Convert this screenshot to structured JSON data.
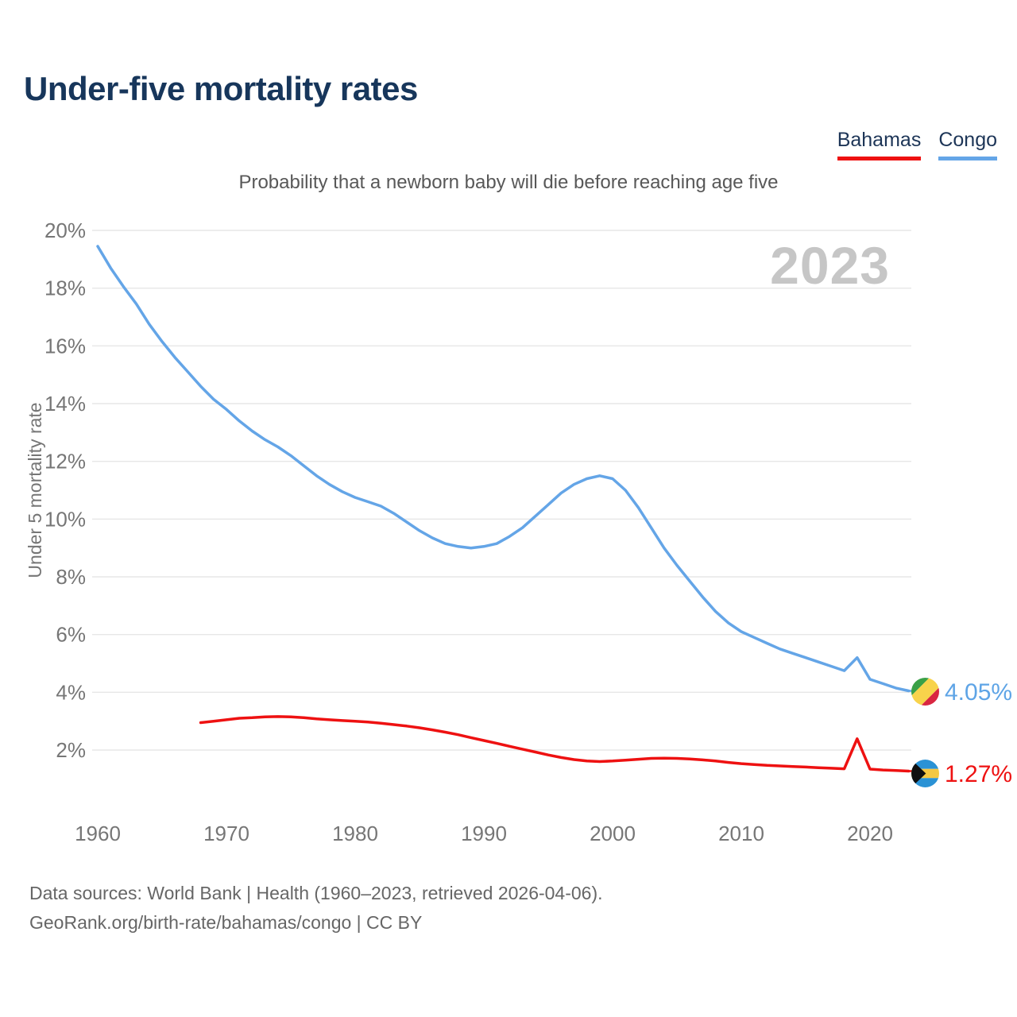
{
  "header": {
    "title": "Under-five mortality rates"
  },
  "legend": {
    "items": [
      {
        "label": "Bahamas",
        "color": "#ee1111"
      },
      {
        "label": "Congo",
        "color": "#64a5e7"
      }
    ]
  },
  "chart_data": {
    "type": "line",
    "title": "Probability that a newborn baby will die before reaching age five",
    "ylabel": "Under 5 mortality rate",
    "watermark": "2023",
    "grid": "horizontal",
    "legend_position": "top-right",
    "xlim": [
      1958,
      2026
    ],
    "ylim": [
      0.8,
      20.6
    ],
    "x_ticks": [
      {
        "value": 1960,
        "label": "1960"
      },
      {
        "value": 1970,
        "label": "1970"
      },
      {
        "value": 1980,
        "label": "1980"
      },
      {
        "value": 1990,
        "label": "1990"
      },
      {
        "value": 2000,
        "label": "2000"
      },
      {
        "value": 2010,
        "label": "2010"
      },
      {
        "value": 2020,
        "label": "2020"
      }
    ],
    "y_ticks": [
      {
        "value": 20,
        "label": "20%"
      },
      {
        "value": 18,
        "label": "18%"
      },
      {
        "value": 16,
        "label": "16%"
      },
      {
        "value": 14,
        "label": "14%"
      },
      {
        "value": 12,
        "label": "12%"
      },
      {
        "value": 10,
        "label": "10%"
      },
      {
        "value": 8,
        "label": "8%"
      },
      {
        "value": 6,
        "label": "6%"
      },
      {
        "value": 4,
        "label": "4%"
      },
      {
        "value": 2,
        "label": "2%"
      }
    ],
    "series": [
      {
        "name": "Congo",
        "color": "#64a5e7",
        "end_label": "4.05%",
        "flag": "congo",
        "start_year": 1960,
        "end_year": 2023,
        "values": [
          19.45,
          18.7,
          18.05,
          17.45,
          16.75,
          16.15,
          15.6,
          15.1,
          14.6,
          14.15,
          13.8,
          13.4,
          13.05,
          12.75,
          12.5,
          12.2,
          11.85,
          11.5,
          11.2,
          10.95,
          10.75,
          10.6,
          10.45,
          10.2,
          9.9,
          9.6,
          9.35,
          9.15,
          9.05,
          9.0,
          9.05,
          9.15,
          9.4,
          9.7,
          10.1,
          10.5,
          10.9,
          11.2,
          11.4,
          11.5,
          11.4,
          11.0,
          10.4,
          9.7,
          9.0,
          8.4,
          7.85,
          7.3,
          6.8,
          6.4,
          6.1,
          5.9,
          5.7,
          5.5,
          5.35,
          5.2,
          5.05,
          4.9,
          4.75,
          5.2,
          4.45,
          4.3,
          4.15,
          4.05
        ]
      },
      {
        "name": "Bahamas",
        "color": "#ee1111",
        "end_label": "1.27%",
        "flag": "bahamas",
        "start_year": 1968,
        "end_year": 2023,
        "values": [
          2.95,
          3.0,
          3.05,
          3.1,
          3.12,
          3.15,
          3.16,
          3.15,
          3.12,
          3.08,
          3.05,
          3.02,
          3.0,
          2.97,
          2.93,
          2.88,
          2.83,
          2.77,
          2.7,
          2.62,
          2.53,
          2.43,
          2.33,
          2.23,
          2.13,
          2.03,
          1.93,
          1.83,
          1.74,
          1.67,
          1.62,
          1.6,
          1.62,
          1.65,
          1.68,
          1.71,
          1.72,
          1.71,
          1.69,
          1.66,
          1.62,
          1.57,
          1.53,
          1.5,
          1.47,
          1.45,
          1.43,
          1.41,
          1.39,
          1.37,
          1.35,
          2.39,
          1.34,
          1.31,
          1.29,
          1.27
        ]
      }
    ]
  },
  "footer": {
    "line1": "Data sources: World Bank | Health (1960–2023, retrieved 2026-04-06).",
    "line2": "GeoRank.org/birth-rate/bahamas/congo | CC BY"
  }
}
